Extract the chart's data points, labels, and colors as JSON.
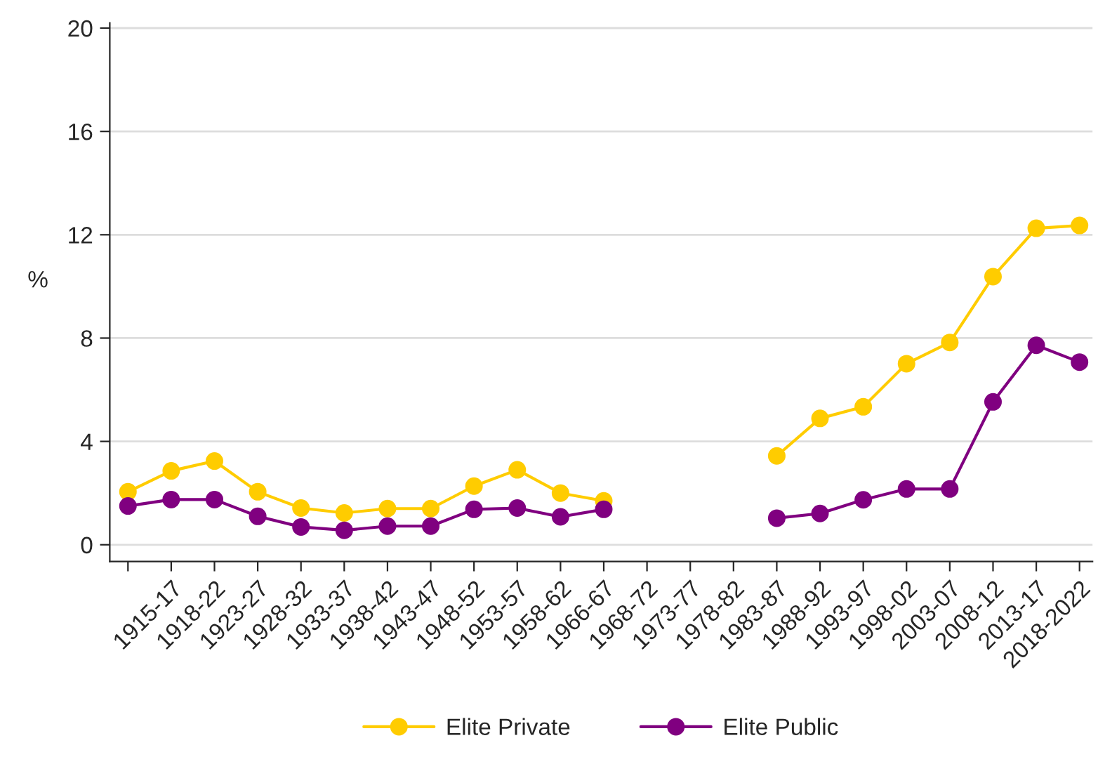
{
  "chart_data": {
    "type": "line",
    "ylabel": "%",
    "categories": [
      null,
      "1915-17",
      "1918-22",
      "1923-27",
      "1928-32",
      "1933-37",
      "1938-42",
      "1943-47",
      "1948-52",
      "1953-57",
      "1958-62",
      "1966-67",
      "1968-72",
      "1973-77",
      "1978-82",
      "1983-87",
      "1988-92",
      "1993-97",
      "1998-02",
      "2003-07",
      "2008-12",
      "2013-17",
      "2018-2022"
    ],
    "series": [
      {
        "name": "Elite Private",
        "color": "#ffcc00",
        "values": [
          2.05,
          2.86,
          3.24,
          2.05,
          1.42,
          1.23,
          1.4,
          1.4,
          2.27,
          2.9,
          2.0,
          1.7,
          null,
          null,
          null,
          3.44,
          4.89,
          5.34,
          7.01,
          7.83,
          10.38,
          12.25,
          12.36
        ]
      },
      {
        "name": "Elite Public",
        "color": "#800080",
        "values": [
          1.5,
          1.75,
          1.75,
          1.1,
          0.69,
          0.56,
          0.72,
          0.72,
          1.37,
          1.42,
          1.08,
          1.37,
          null,
          null,
          null,
          1.03,
          1.21,
          1.74,
          2.16,
          2.16,
          5.53,
          7.72,
          7.07
        ]
      }
    ],
    "ylim": [
      -0.65,
      20.2
    ],
    "yticks": [
      0,
      4,
      8,
      12,
      16,
      20
    ],
    "grid": "y",
    "legend": "bottom",
    "marker": "circle",
    "line_style": "solid"
  }
}
